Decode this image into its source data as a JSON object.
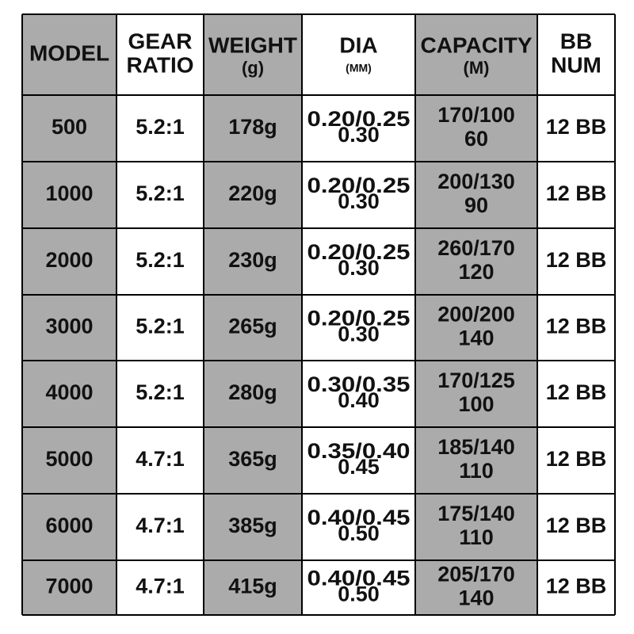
{
  "table": {
    "header": [
      {
        "lines": [
          "MODEL"
        ]
      },
      {
        "lines": [
          "GEAR",
          "RATIO"
        ]
      },
      {
        "lines": [
          "WEIGHT"
        ],
        "sub": "(g)"
      },
      {
        "lines": [
          "DIA"
        ],
        "sub": "(MM)"
      },
      {
        "lines": [
          "CAPACITY"
        ],
        "sub": "(M)"
      },
      {
        "lines": [
          "BB",
          "NUM"
        ]
      }
    ],
    "rows": [
      [
        [
          "500"
        ],
        [
          "5.2:1"
        ],
        [
          "178g"
        ],
        [
          "0.20/0.25",
          "0.30"
        ],
        [
          "170/100",
          "60"
        ],
        [
          "12 BB"
        ]
      ],
      [
        [
          "1000"
        ],
        [
          "5.2:1"
        ],
        [
          "220g"
        ],
        [
          "0.20/0.25",
          "0.30"
        ],
        [
          "200/130",
          "90"
        ],
        [
          "12 BB"
        ]
      ],
      [
        [
          "2000"
        ],
        [
          "5.2:1"
        ],
        [
          "230g"
        ],
        [
          "0.20/0.25",
          "0.30"
        ],
        [
          "260/170",
          "120"
        ],
        [
          "12 BB"
        ]
      ],
      [
        [
          "3000"
        ],
        [
          "5.2:1"
        ],
        [
          "265g"
        ],
        [
          "0.20/0.25",
          "0.30"
        ],
        [
          "200/200",
          "140"
        ],
        [
          "12 BB"
        ]
      ],
      [
        [
          "4000"
        ],
        [
          "5.2:1"
        ],
        [
          "280g"
        ],
        [
          "0.30/0.35",
          "0.40"
        ],
        [
          "170/125",
          "100"
        ],
        [
          "12 BB"
        ]
      ],
      [
        [
          "5000"
        ],
        [
          "4.7:1"
        ],
        [
          "365g"
        ],
        [
          "0.35/0.40",
          "0.45"
        ],
        [
          "185/140",
          "110"
        ],
        [
          "12 BB"
        ]
      ],
      [
        [
          "6000"
        ],
        [
          "4.7:1"
        ],
        [
          "385g"
        ],
        [
          "0.40/0.45",
          "0.50"
        ],
        [
          "175/140",
          "110"
        ],
        [
          "12 BB"
        ]
      ],
      [
        [
          "7000"
        ],
        [
          "4.7:1"
        ],
        [
          "415g"
        ],
        [
          "0.40/0.45",
          "0.50"
        ],
        [
          "205/170",
          "140"
        ],
        [
          "12 BB"
        ]
      ]
    ]
  }
}
